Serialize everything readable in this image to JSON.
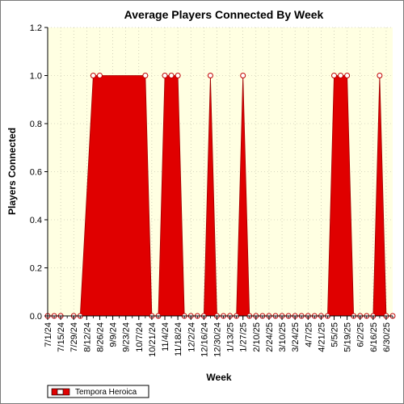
{
  "chart_data": {
    "type": "area",
    "title": "Average Players Connected By Week",
    "xlabel": "Week",
    "ylabel": "Players Connected",
    "ylim": [
      0,
      1.2
    ],
    "yticks": [
      "0.0",
      "0.2",
      "0.4",
      "0.6",
      "0.8",
      "1.0",
      "1.2"
    ],
    "xtick_labels": [
      "7/1/24",
      "7/15/24",
      "7/29/24",
      "8/12/24",
      "8/26/24",
      "9/9/24",
      "9/23/24",
      "10/7/24",
      "10/21/24",
      "11/4/24",
      "11/18/24",
      "12/2/24",
      "12/16/24",
      "12/30/24",
      "1/13/25",
      "1/27/25",
      "2/10/25",
      "2/24/25",
      "3/10/25",
      "3/24/25",
      "4/7/25",
      "4/21/25",
      "5/5/25",
      "5/19/25",
      "6/2/25",
      "6/16/25",
      "6/30/25"
    ],
    "grid": true,
    "legend_position": "bottom-left",
    "series": [
      {
        "name": "Tempora Heroica",
        "color": "#e00000",
        "points": [
          [
            "7/1/24",
            0
          ],
          [
            "7/8/24",
            0
          ],
          [
            "7/15/24",
            0
          ],
          [
            "7/29/24",
            0
          ],
          [
            "8/5/24",
            0
          ],
          [
            "8/19/24",
            1
          ],
          [
            "8/26/24",
            1
          ],
          [
            "10/14/24",
            1
          ],
          [
            "10/21/24",
            0
          ],
          [
            "10/28/24",
            0
          ],
          [
            "11/4/24",
            1
          ],
          [
            "11/11/24",
            1
          ],
          [
            "11/18/24",
            1
          ],
          [
            "11/25/24",
            0
          ],
          [
            "12/2/24",
            0
          ],
          [
            "12/9/24",
            0
          ],
          [
            "12/16/24",
            0
          ],
          [
            "12/23/24",
            1
          ],
          [
            "12/30/24",
            0
          ],
          [
            "1/6/25",
            0
          ],
          [
            "1/13/25",
            0
          ],
          [
            "1/20/25",
            0
          ],
          [
            "1/27/25",
            1
          ],
          [
            "2/3/25",
            0
          ],
          [
            "2/10/25",
            0
          ],
          [
            "2/17/25",
            0
          ],
          [
            "2/24/25",
            0
          ],
          [
            "3/3/25",
            0
          ],
          [
            "3/10/25",
            0
          ],
          [
            "3/17/25",
            0
          ],
          [
            "3/24/25",
            0
          ],
          [
            "3/31/25",
            0
          ],
          [
            "4/7/25",
            0
          ],
          [
            "4/14/25",
            0
          ],
          [
            "4/21/25",
            0
          ],
          [
            "4/28/25",
            0
          ],
          [
            "5/5/25",
            1
          ],
          [
            "5/12/25",
            1
          ],
          [
            "5/19/25",
            1
          ],
          [
            "5/26/25",
            0
          ],
          [
            "6/2/25",
            0
          ],
          [
            "6/9/25",
            0
          ],
          [
            "6/16/25",
            0
          ],
          [
            "6/23/25",
            1
          ],
          [
            "6/30/25",
            0
          ],
          [
            "7/7/25",
            0
          ]
        ]
      }
    ]
  }
}
